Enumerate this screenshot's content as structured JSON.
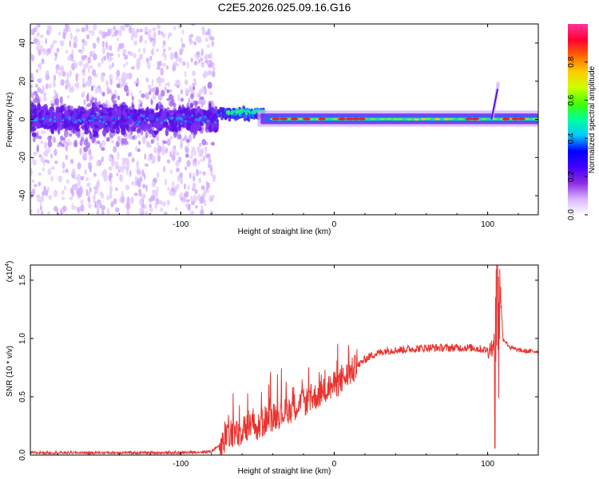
{
  "title": "C2E5.2026.025.09.16.G16",
  "chart_data": [
    {
      "type": "heatmap",
      "xlabel": "Height of straight line (km)",
      "ylabel": "Frequency (Hz)",
      "xlim": [
        -198,
        133
      ],
      "ylim": [
        -50,
        50
      ],
      "xticks": [
        -100,
        0,
        100
      ],
      "yticks": [
        -40,
        -20,
        0,
        20,
        40
      ],
      "colorbar": {
        "label": "Normalized spectral amplitude",
        "range": [
          0,
          1
        ],
        "ticks": [
          "0.0",
          "0.2",
          "0.4",
          "0.6",
          "0.8"
        ],
        "colors": [
          "#ffffff",
          "#d9b3ff",
          "#8a2be2",
          "#4400ff",
          "#0000ff",
          "#00ccff",
          "#00ff99",
          "#44ff00",
          "#ccff00",
          "#ffcc00",
          "#ff6600",
          "#ff0033",
          "#ff3399"
        ]
      }
    },
    {
      "type": "line",
      "xlabel": "Height of straight line (km)",
      "ylabel": "SNR (10 * v/v)",
      "yscale_label": "(x10",
      "yscale_exp": "4",
      "xlim": [
        -198,
        133
      ],
      "ylim": [
        0,
        1.63
      ],
      "xticks": [
        -100,
        0,
        100
      ],
      "yticks": [
        "0.0",
        "0.5",
        "1.0",
        "1.5"
      ],
      "series": [
        {
          "name": "SNR",
          "color": "#e8332e",
          "x": [
            -198,
            -150,
            -100,
            -80,
            -72,
            -66,
            -62,
            -58,
            -54,
            -50,
            -45,
            -40,
            -35,
            -30,
            -25,
            -20,
            -15,
            -10,
            -5,
            0,
            5,
            10,
            15,
            20,
            25,
            30,
            35,
            40,
            50,
            60,
            70,
            80,
            90,
            100,
            103,
            105,
            106,
            107,
            108,
            110,
            115,
            120,
            125,
            133
          ],
          "y": [
            0.02,
            0.02,
            0.02,
            0.03,
            0.12,
            0.2,
            0.16,
            0.22,
            0.24,
            0.22,
            0.3,
            0.33,
            0.35,
            0.38,
            0.42,
            0.45,
            0.48,
            0.52,
            0.56,
            0.6,
            0.64,
            0.7,
            0.76,
            0.82,
            0.86,
            0.88,
            0.9,
            0.9,
            0.91,
            0.92,
            0.92,
            0.92,
            0.92,
            0.9,
            0.93,
            1.0,
            1.35,
            0.6,
            1.45,
            1.0,
            0.92,
            0.9,
            0.89,
            0.89
          ]
        }
      ]
    }
  ]
}
